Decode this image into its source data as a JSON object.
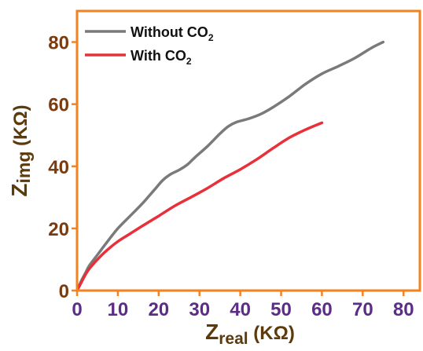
{
  "chart_data": {
    "type": "line",
    "xlabel_main": "Z",
    "xlabel_sub": "real",
    "xlabel_unit": " (KΩ)",
    "ylabel_main": "Z",
    "ylabel_sub": "img",
    "ylabel_unit": " (KΩ)",
    "xlim": [
      0,
      84
    ],
    "ylim": [
      0,
      90
    ],
    "xticks": [
      0,
      10,
      20,
      30,
      40,
      50,
      60,
      70,
      80
    ],
    "yticks": [
      0,
      20,
      40,
      60,
      80
    ],
    "legend_position": "top-left",
    "grid": false,
    "colors": {
      "frame": "#f58220",
      "x_tick_labels": "#5b2d86",
      "y_tick_labels": "#7a3b0f",
      "axis_title": "#5c3a0c"
    },
    "series": [
      {
        "legend_text": "Without CO",
        "legend_sub": "2",
        "color": "#7a7a7a",
        "points": [
          [
            0,
            0
          ],
          [
            1,
            3
          ],
          [
            2,
            5.5
          ],
          [
            3,
            8
          ],
          [
            5,
            11.5
          ],
          [
            7,
            15
          ],
          [
            10,
            20
          ],
          [
            13,
            24
          ],
          [
            16,
            28
          ],
          [
            19,
            32.5
          ],
          [
            21,
            35.5
          ],
          [
            23,
            37.5
          ],
          [
            25,
            38.8
          ],
          [
            27,
            40.5
          ],
          [
            29,
            43
          ],
          [
            32,
            46.5
          ],
          [
            35,
            50.5
          ],
          [
            37,
            52.8
          ],
          [
            39,
            54.2
          ],
          [
            42,
            55.3
          ],
          [
            45,
            56.8
          ],
          [
            48,
            59
          ],
          [
            52,
            62.5
          ],
          [
            56,
            66.5
          ],
          [
            60,
            69.8
          ],
          [
            64,
            72.2
          ],
          [
            68,
            74.8
          ],
          [
            72,
            78
          ],
          [
            75,
            80
          ]
        ]
      },
      {
        "legend_text": "With CO",
        "legend_sub": "2",
        "color": "#e8303a",
        "points": [
          [
            0,
            0
          ],
          [
            1,
            2.5
          ],
          [
            2,
            5
          ],
          [
            3,
            7
          ],
          [
            5,
            10
          ],
          [
            7,
            12.6
          ],
          [
            10,
            15.8
          ],
          [
            13,
            18.3
          ],
          [
            16,
            20.8
          ],
          [
            20,
            24
          ],
          [
            24,
            27.3
          ],
          [
            28,
            30.1
          ],
          [
            32,
            33
          ],
          [
            36,
            36.2
          ],
          [
            40,
            39
          ],
          [
            44,
            42.2
          ],
          [
            48,
            45.8
          ],
          [
            52,
            49.2
          ],
          [
            56,
            51.8
          ],
          [
            60,
            54
          ]
        ]
      }
    ]
  }
}
